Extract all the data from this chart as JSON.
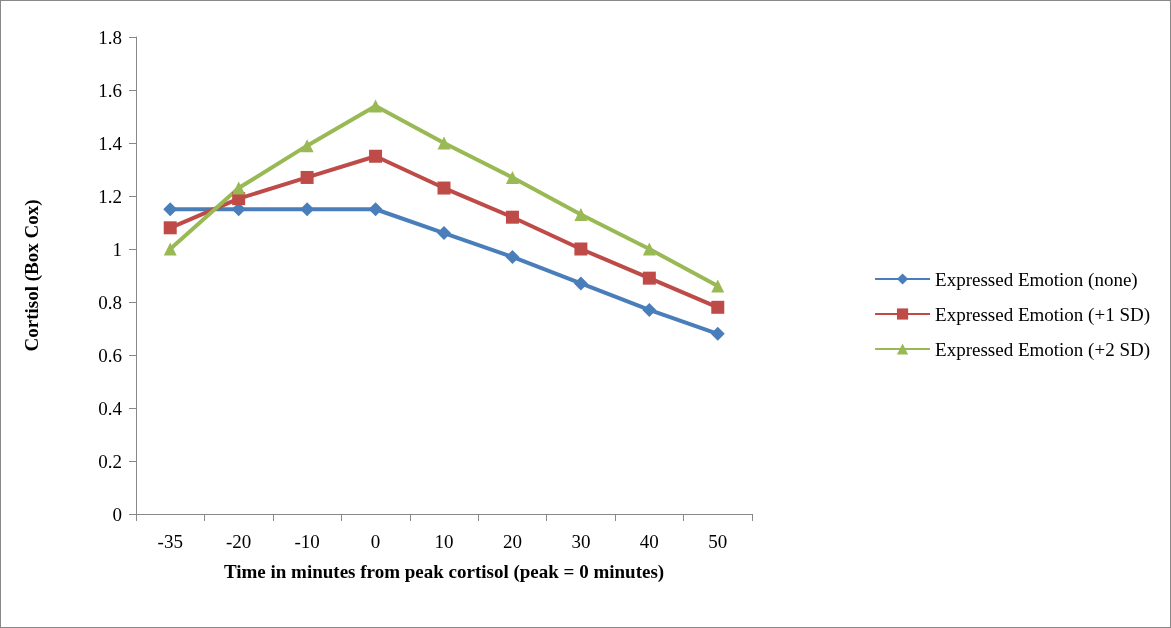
{
  "chart_data": {
    "type": "line",
    "xlabel": "Time in minutes from peak cortisol (peak = 0 minutes)",
    "ylabel": "Cortisol (Box Cox)",
    "categories": [
      "-35",
      "-20",
      "-10",
      "0",
      "10",
      "20",
      "30",
      "40",
      "50"
    ],
    "series": [
      {
        "name": "Expressed Emotion (none)",
        "color": "#4a7ebb",
        "marker": "diamond",
        "values": [
          1.15,
          1.15,
          1.15,
          1.15,
          1.06,
          0.97,
          0.87,
          0.77,
          0.68
        ]
      },
      {
        "name": "Expressed Emotion (+1 SD)",
        "color": "#be4b48",
        "marker": "square",
        "values": [
          1.08,
          1.19,
          1.27,
          1.35,
          1.23,
          1.12,
          1.0,
          0.89,
          0.78
        ]
      },
      {
        "name": "Expressed Emotion (+2 SD)",
        "color": "#98b954",
        "marker": "triangle",
        "values": [
          1.0,
          1.23,
          1.39,
          1.54,
          1.4,
          1.27,
          1.13,
          1.0,
          0.86
        ]
      }
    ],
    "ylim": [
      0,
      1.8
    ],
    "yticks": [
      0,
      0.2,
      0.4,
      0.6,
      0.8,
      1,
      1.2,
      1.4,
      1.6,
      1.8
    ],
    "grid": false,
    "legend": "right",
    "line_style": "solid"
  }
}
